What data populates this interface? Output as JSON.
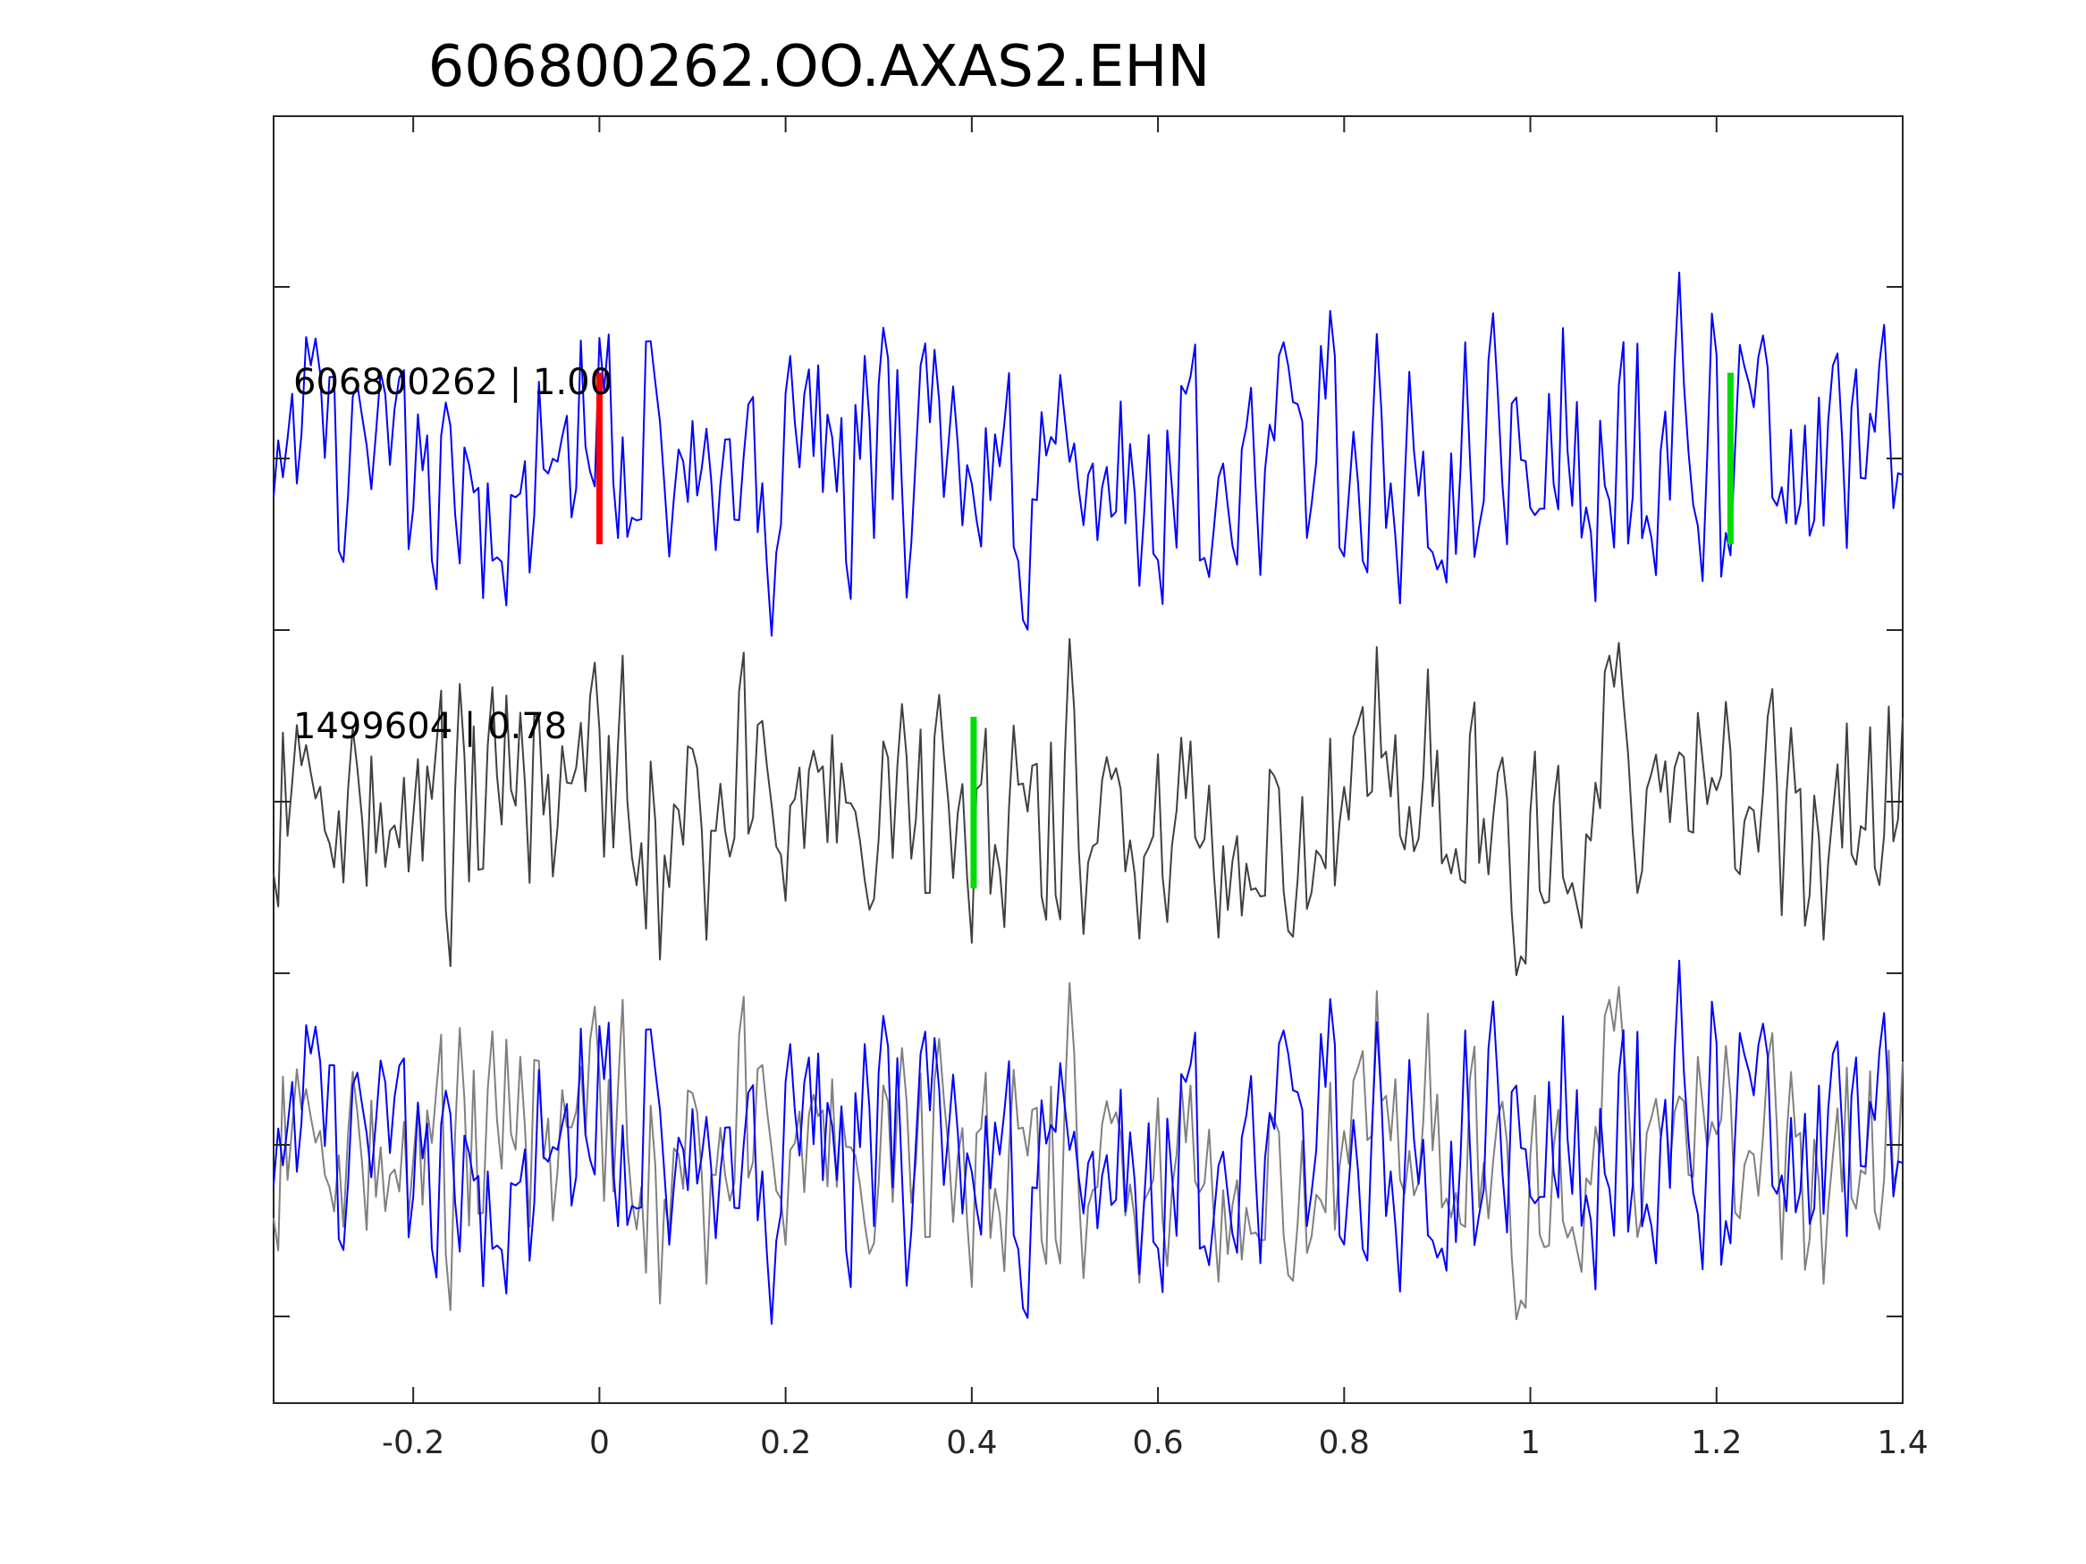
{
  "chart_data": {
    "type": "line",
    "title": "606800262.OO.AXAS2.EHN",
    "xlabel": "",
    "ylabel": "",
    "xlim": [
      -0.35,
      1.4
    ],
    "x_ticks": [
      -0.2,
      0,
      0.2,
      0.4,
      0.6,
      0.8,
      1,
      1.2,
      1.4
    ],
    "x_tick_labels": [
      "-0.2",
      "0",
      "0.2",
      "0.4",
      "0.6",
      "0.8",
      "1",
      "1.2",
      "1.4"
    ],
    "y_tick_count": 7,
    "grid": false,
    "legend": "none",
    "colors": {
      "template": "#0000ff",
      "detection": "#404040",
      "overlay_detection": "#808080",
      "pick_p": "#ff0000",
      "pick_s": "#00dd00",
      "axis": "#262626"
    },
    "traces": [
      {
        "label": "606800262 | 1.00",
        "color": "#0000ff",
        "panel": "top",
        "picks": [
          {
            "phase": "P",
            "time": 0.0,
            "color": "#ff0000"
          },
          {
            "phase": "S",
            "time": 1.215,
            "color": "#00dd00"
          }
        ]
      },
      {
        "label": "1499604 | 0.78",
        "color": "#404040",
        "panel": "middle",
        "picks": [
          {
            "phase": "S",
            "time": 0.402,
            "color": "#00dd00"
          }
        ]
      },
      {
        "label": "",
        "panel": "bottom",
        "overlay": true,
        "series": [
          {
            "color": "#808080"
          },
          {
            "color": "#0000ff"
          }
        ]
      }
    ],
    "sampling_interval": 0.005,
    "waveform_note": ""
  }
}
